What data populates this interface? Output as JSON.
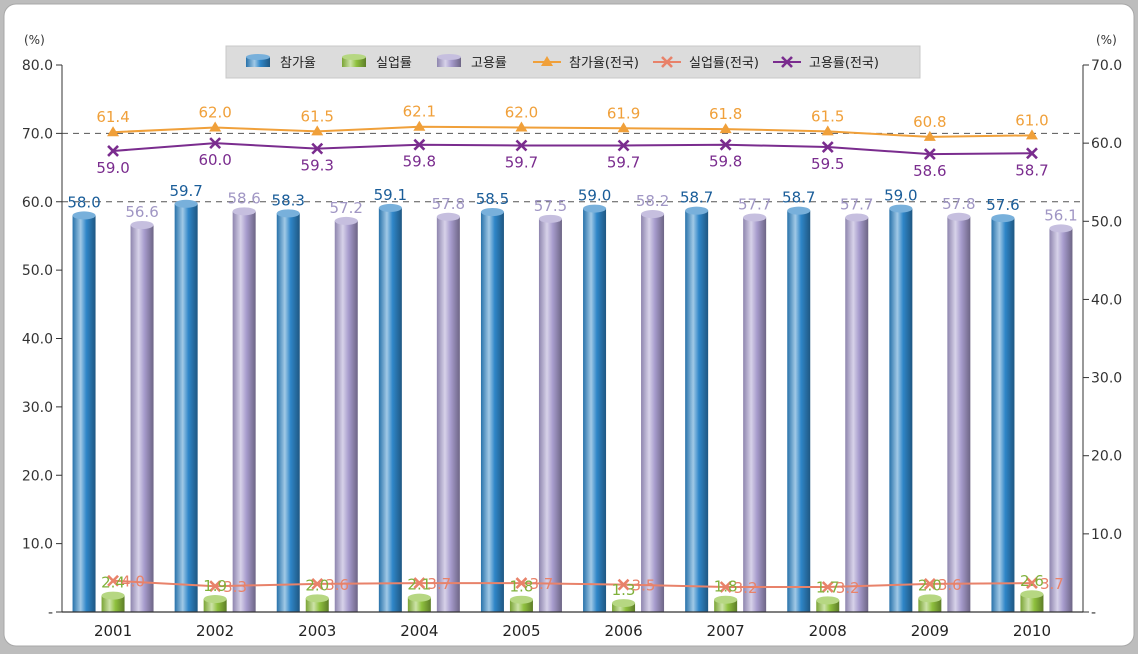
{
  "chart_data": {
    "type": "bar",
    "categories": [
      "2001",
      "2002",
      "2003",
      "2004",
      "2005",
      "2006",
      "2007",
      "2008",
      "2009",
      "2010"
    ],
    "left_axis": {
      "unit": "(%)",
      "ylim": [
        0,
        80
      ],
      "ticks": [
        {
          "v": 0,
          "label": "-"
        },
        {
          "v": 10,
          "label": "10.0"
        },
        {
          "v": 20,
          "label": "20.0"
        },
        {
          "v": 30,
          "label": "30.0"
        },
        {
          "v": 40,
          "label": "40.0"
        },
        {
          "v": 50,
          "label": "50.0"
        },
        {
          "v": 60,
          "label": "60.0"
        },
        {
          "v": 70,
          "label": "70.0"
        },
        {
          "v": 80,
          "label": "80.0"
        }
      ]
    },
    "right_axis": {
      "unit": "(%)",
      "ylim": [
        0,
        70
      ],
      "ticks": [
        {
          "v": 0,
          "label": "-"
        },
        {
          "v": 10,
          "label": "10.0"
        },
        {
          "v": 20,
          "label": "20.0"
        },
        {
          "v": 30,
          "label": "30.0"
        },
        {
          "v": 40,
          "label": "40.0"
        },
        {
          "v": 50,
          "label": "50.0"
        },
        {
          "v": 60,
          "label": "60.0"
        },
        {
          "v": 70,
          "label": "70.0"
        }
      ]
    },
    "grid": "dashed at 60 and 70 (left axis)",
    "legend_position": "top",
    "bar_series": [
      {
        "name": "참가율",
        "axis": "left",
        "color": "#2f86c8",
        "values": [
          58.0,
          59.7,
          58.3,
          59.1,
          58.5,
          59.0,
          58.7,
          58.7,
          59.0,
          57.6
        ]
      },
      {
        "name": "실업률",
        "axis": "left",
        "color": "#8fc13e",
        "values": [
          2.4,
          1.9,
          2.0,
          2.1,
          1.8,
          1.3,
          1.8,
          1.7,
          2.0,
          2.6
        ]
      },
      {
        "name": "고용률",
        "axis": "left",
        "color": "#a79ccd",
        "values": [
          56.6,
          58.6,
          57.2,
          57.8,
          57.5,
          58.2,
          57.7,
          57.7,
          57.8,
          56.1
        ]
      }
    ],
    "line_series": [
      {
        "name": "참가율(전국)",
        "axis": "right",
        "color": "#f0a03a",
        "marker": "triangle",
        "values": [
          61.4,
          62.0,
          61.5,
          62.1,
          62.0,
          61.9,
          61.8,
          61.5,
          60.8,
          61.0
        ]
      },
      {
        "name": "실업률(전국)",
        "axis": "right",
        "color": "#e8826a",
        "marker": "x",
        "values": [
          4.0,
          3.3,
          3.6,
          3.7,
          3.7,
          3.5,
          3.2,
          3.2,
          3.6,
          3.7
        ]
      },
      {
        "name": "고용률(전국)",
        "axis": "right",
        "color": "#7a2c8e",
        "marker": "x",
        "values": [
          59.0,
          60.0,
          59.3,
          59.8,
          59.7,
          59.7,
          59.8,
          59.5,
          58.6,
          58.7
        ]
      }
    ]
  }
}
